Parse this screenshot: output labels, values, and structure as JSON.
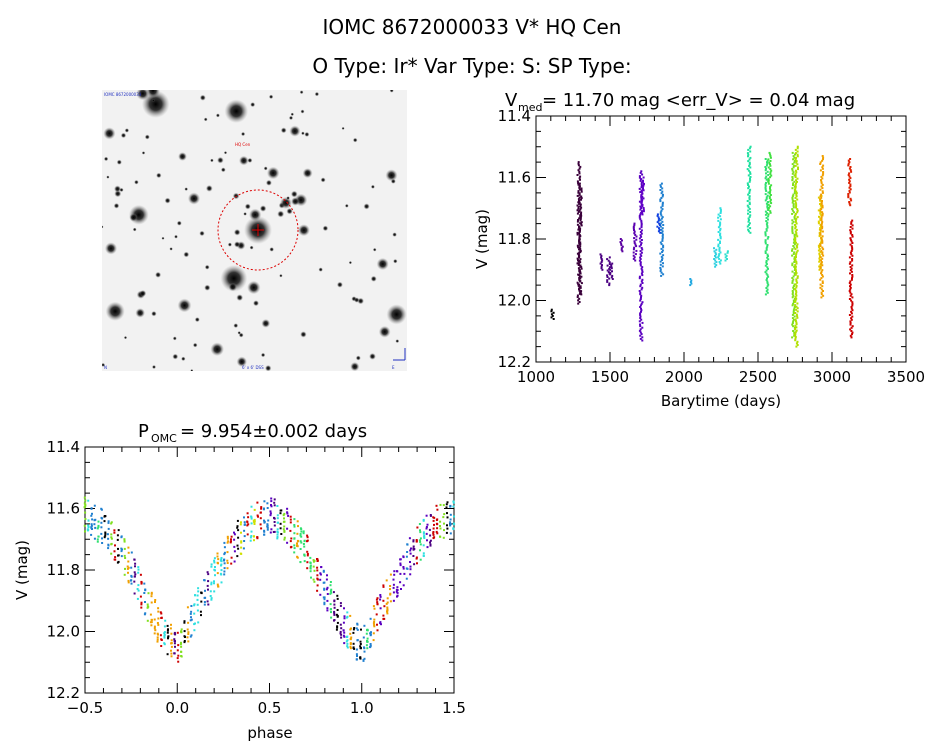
{
  "header": {
    "title": "IOMC 8672000033    V* HQ Cen",
    "subtitle": "O Type: Ir*  Var Type: S:  SP Type:"
  },
  "sky_image": {
    "label_topleft": "IOMC 8672000033",
    "label_target": "HQ Cen",
    "label_bottom": "6' x 6' DSS",
    "label_corner_left": "N",
    "label_corner_right": "E",
    "marker_color": "#dd0000"
  },
  "chart_data": [
    {
      "id": "lightcurve",
      "type": "scatter",
      "title": "V_med = 11.70 mag <err_V> = 0.04 mag",
      "title_main": "V",
      "title_sub": "med",
      "title_rest": " = 11.70 mag <err_V> = 0.04 mag",
      "xlabel": "Barytime (days)",
      "ylabel": "V (mag)",
      "xlim": [
        1000,
        3500
      ],
      "ylim": [
        12.2,
        11.4
      ],
      "x_ticks": [
        "1000",
        "1500",
        "2000",
        "2500",
        "3000",
        "3500"
      ],
      "y_ticks": [
        "11.4",
        "11.6",
        "11.8",
        "12.0",
        "12.2"
      ],
      "series": [
        {
          "x": 1110,
          "v_top": 12.03,
          "v_bot": 12.06,
          "color": "#000000"
        },
        {
          "x": 1290,
          "v_top": 11.55,
          "v_bot": 12.01,
          "color": "#3a003a"
        },
        {
          "x": 1300,
          "v_top": 11.62,
          "v_bot": 11.98,
          "color": "#3a003a"
        },
        {
          "x": 1440,
          "v_top": 11.85,
          "v_bot": 11.9,
          "color": "#4b0082"
        },
        {
          "x": 1490,
          "v_top": 11.86,
          "v_bot": 11.95,
          "color": "#4b0082"
        },
        {
          "x": 1510,
          "v_top": 11.88,
          "v_bot": 11.93,
          "color": "#4b0082"
        },
        {
          "x": 1580,
          "v_top": 11.8,
          "v_bot": 11.84,
          "color": "#5a00a0"
        },
        {
          "x": 1670,
          "v_top": 11.75,
          "v_bot": 11.87,
          "color": "#5a00b0"
        },
        {
          "x": 1710,
          "v_top": 11.58,
          "v_bot": 12.13,
          "color": "#5a00c0"
        },
        {
          "x": 1720,
          "v_top": 11.6,
          "v_bot": 11.72,
          "color": "#6000c8"
        },
        {
          "x": 1830,
          "v_top": 11.72,
          "v_bot": 11.78,
          "color": "#1040e0"
        },
        {
          "x": 1850,
          "v_top": 11.62,
          "v_bot": 11.92,
          "color": "#2080d0"
        },
        {
          "x": 2040,
          "v_top": 11.93,
          "v_bot": 11.95,
          "color": "#20a8e0"
        },
        {
          "x": 2210,
          "v_top": 11.83,
          "v_bot": 11.89,
          "color": "#30d0e0"
        },
        {
          "x": 2240,
          "v_top": 11.7,
          "v_bot": 11.88,
          "color": "#30e0e0"
        },
        {
          "x": 2290,
          "v_top": 11.84,
          "v_bot": 11.87,
          "color": "#30e0d0"
        },
        {
          "x": 2440,
          "v_top": 11.5,
          "v_bot": 11.78,
          "color": "#20e0a0"
        },
        {
          "x": 2560,
          "v_top": 11.54,
          "v_bot": 11.98,
          "color": "#30e070"
        },
        {
          "x": 2580,
          "v_top": 11.52,
          "v_bot": 11.72,
          "color": "#40e040"
        },
        {
          "x": 2740,
          "v_top": 11.52,
          "v_bot": 12.12,
          "color": "#80e020"
        },
        {
          "x": 2760,
          "v_top": 11.5,
          "v_bot": 12.15,
          "color": "#b0e000"
        },
        {
          "x": 2920,
          "v_top": 11.66,
          "v_bot": 11.9,
          "color": "#e0d000"
        },
        {
          "x": 2930,
          "v_top": 11.53,
          "v_bot": 11.99,
          "color": "#f0a000"
        },
        {
          "x": 3120,
          "v_top": 11.54,
          "v_bot": 11.69,
          "color": "#dd2000"
        },
        {
          "x": 3130,
          "v_top": 11.74,
          "v_bot": 12.12,
          "color": "#cc0000"
        }
      ]
    },
    {
      "id": "phase",
      "type": "scatter",
      "title": "P_OMC = 9.954±0.002 days",
      "title_main": "P",
      "title_sub": "OMC",
      "title_rest": " = 9.954±0.002 days",
      "xlabel": "phase",
      "ylabel": "V (mag)",
      "xlim": [
        -0.5,
        1.5
      ],
      "ylim": [
        12.2,
        11.4
      ],
      "x_ticks": [
        "−0.5",
        "0.0",
        "0.5",
        "1.0",
        "1.5"
      ],
      "y_ticks": [
        "11.4",
        "11.6",
        "11.8",
        "12.0",
        "12.2"
      ],
      "curve": {
        "phase": [
          0.0,
          0.1,
          0.2,
          0.3,
          0.4,
          0.5,
          0.6,
          0.7,
          0.8,
          0.9,
          1.0
        ],
        "v": [
          12.05,
          11.93,
          11.82,
          11.72,
          11.65,
          11.62,
          11.66,
          11.74,
          11.86,
          11.98,
          12.05
        ]
      },
      "scatter_halfwidth_mag": 0.06,
      "palette": [
        "#000000",
        "#4b0082",
        "#5a00c0",
        "#2080d0",
        "#30e0e0",
        "#30e070",
        "#80e020",
        "#d0e000",
        "#f0a000",
        "#cc0000"
      ]
    }
  ]
}
